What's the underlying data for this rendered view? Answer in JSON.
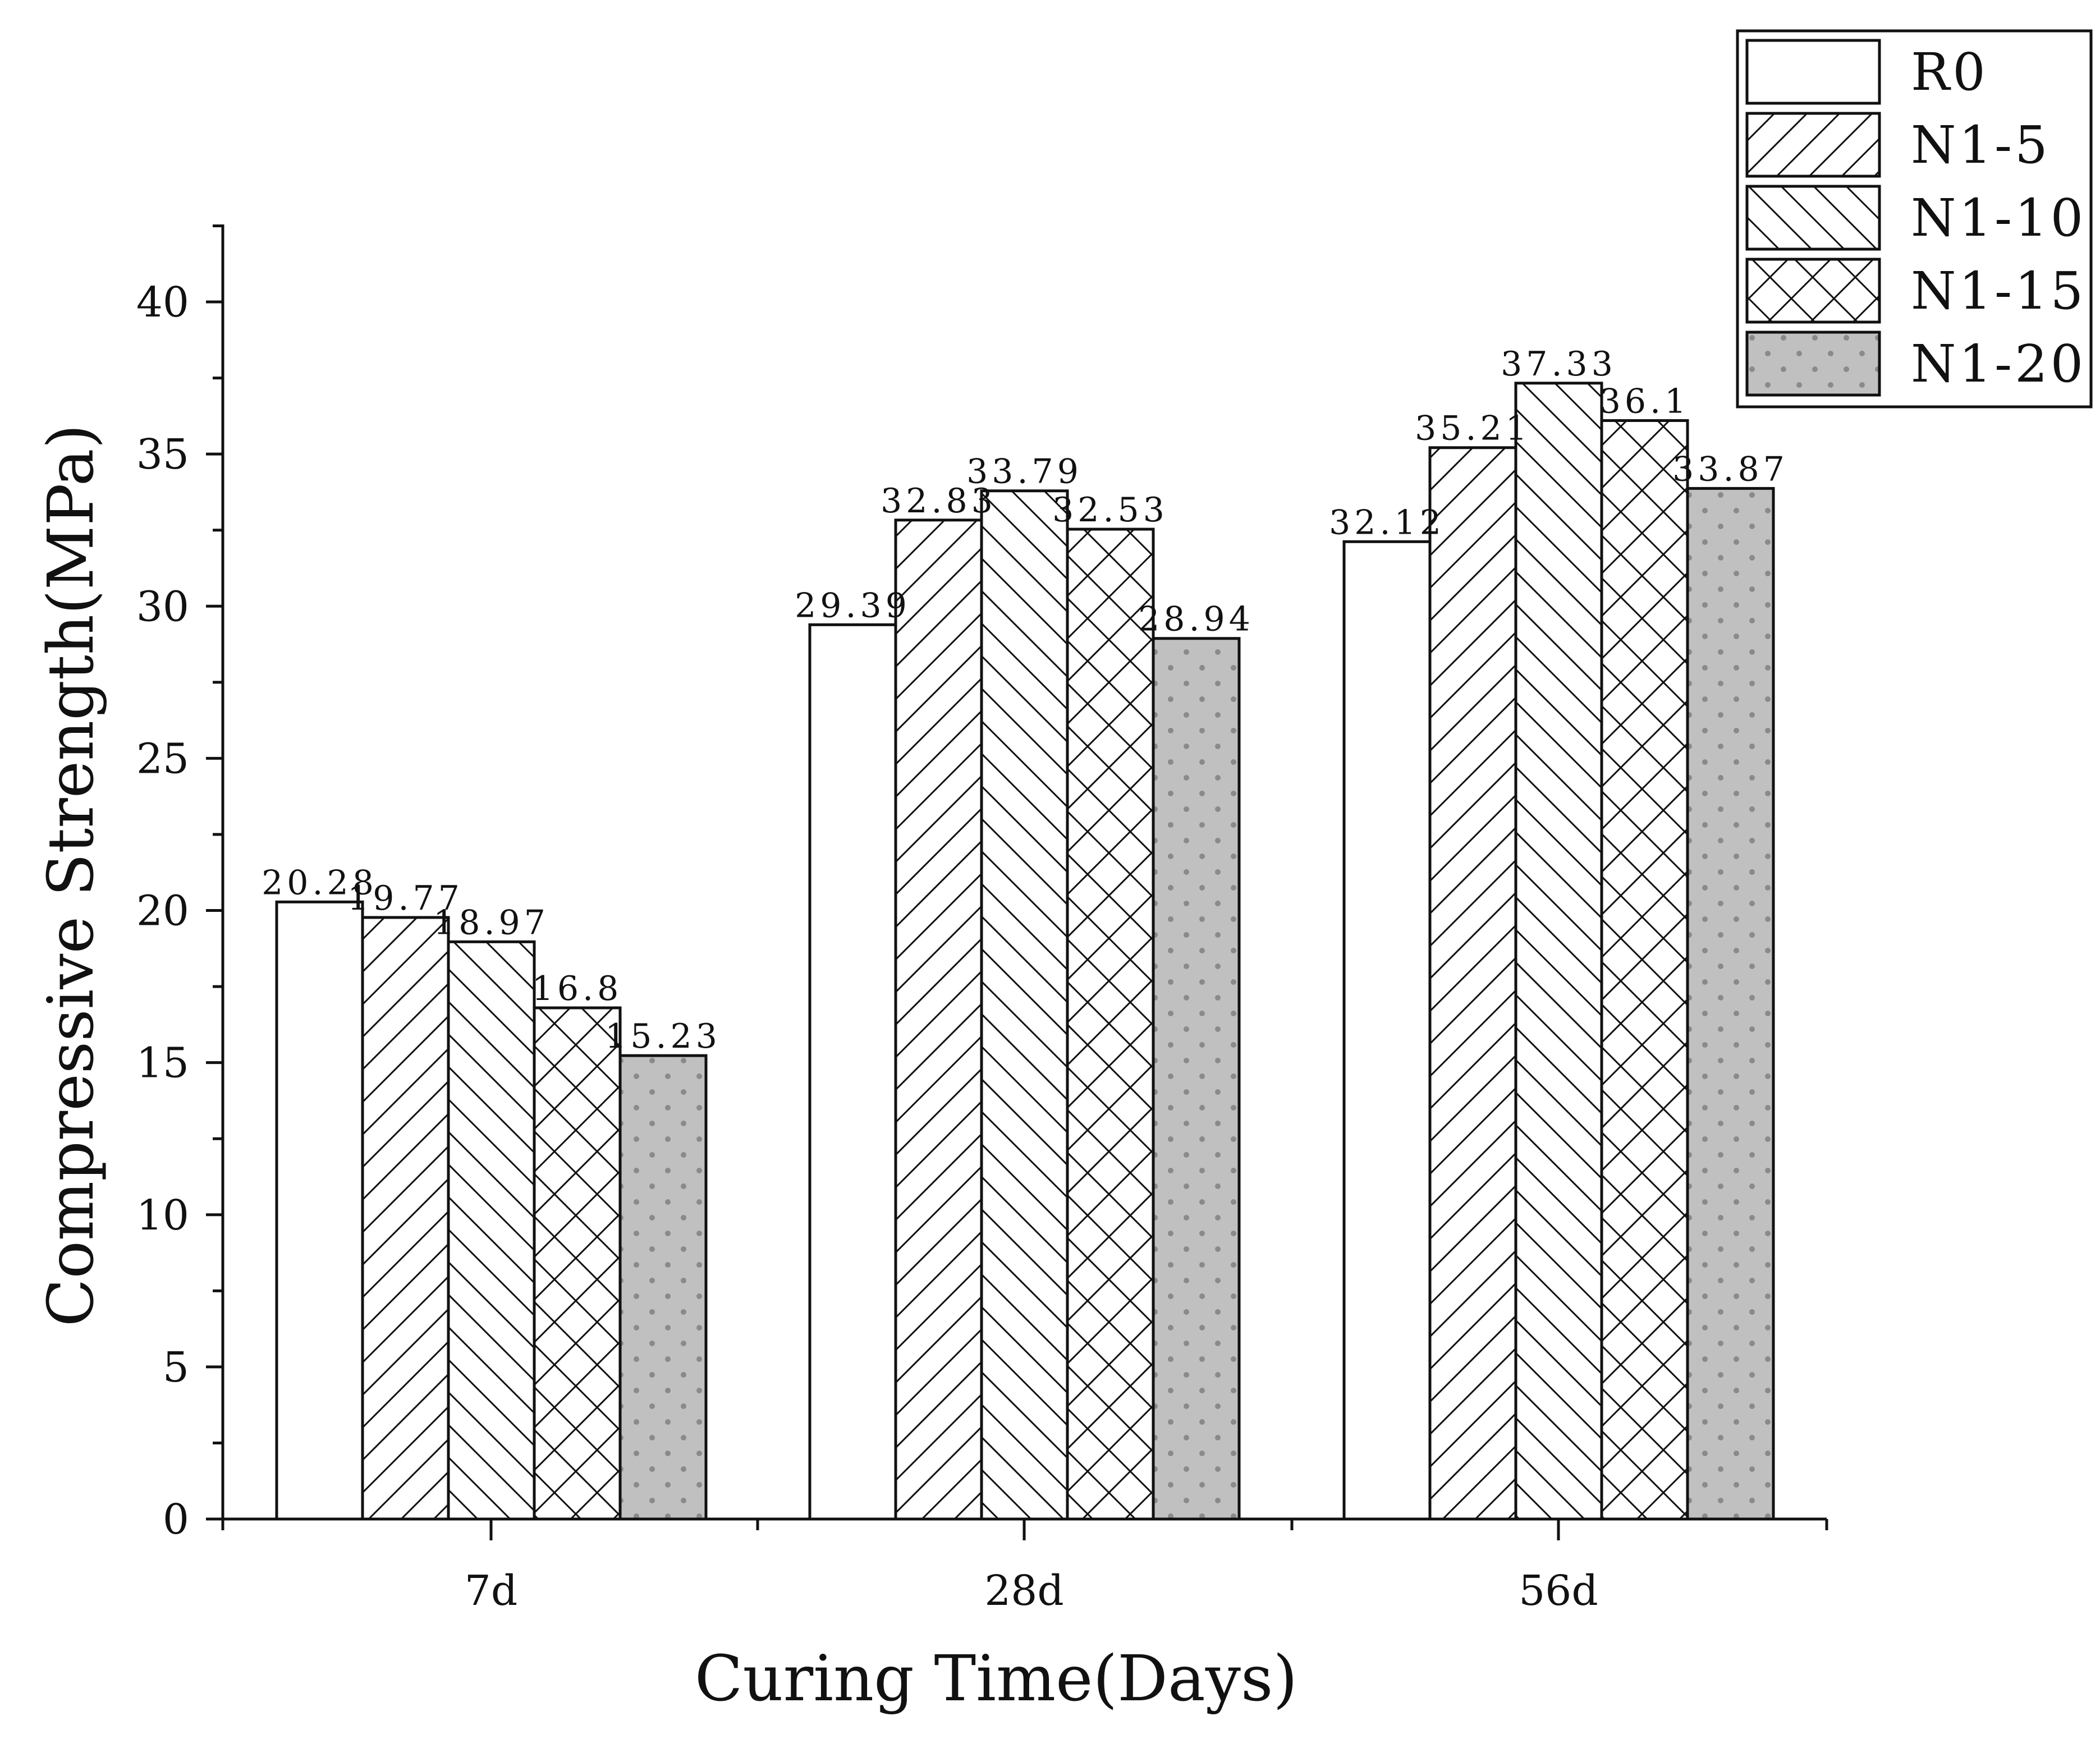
{
  "chart_data": {
    "type": "bar",
    "title": "",
    "xlabel": "Curing Time(Days)",
    "ylabel": "Compressive Strength(MPa)",
    "ylim": [
      0,
      42.5
    ],
    "yticks": [
      0,
      5,
      10,
      15,
      20,
      25,
      30,
      35,
      40
    ],
    "grid": false,
    "legend_position": "top-right",
    "categories": [
      "7d",
      "28d",
      "56d"
    ],
    "series": [
      {
        "name": "R0",
        "pattern": "none",
        "values": [
          20.28,
          29.39,
          32.12
        ],
        "labels": [
          "20.28",
          "29.39",
          "32.12"
        ]
      },
      {
        "name": "N1-5",
        "pattern": "forward-diagonal",
        "values": [
          19.77,
          32.83,
          35.21
        ],
        "labels": [
          "19.77",
          "32.83",
          "35.21"
        ]
      },
      {
        "name": "N1-10",
        "pattern": "backward-diagonal",
        "values": [
          18.97,
          33.79,
          37.33
        ],
        "labels": [
          "18.97",
          "33.79",
          "37.33"
        ]
      },
      {
        "name": "N1-15",
        "pattern": "crosshatch",
        "values": [
          16.8,
          32.53,
          36.1
        ],
        "labels": [
          "16.8",
          "32.53",
          "36.1"
        ]
      },
      {
        "name": "N1-20",
        "pattern": "dots-gray",
        "values": [
          15.23,
          28.94,
          33.87
        ],
        "labels": [
          "15.23",
          "28.94",
          "33.87"
        ]
      }
    ],
    "colors": {
      "axis": "#111111",
      "bar_outline": "#111111",
      "bar_fill": "#ffffff",
      "dot_fill": "#c0c0c0",
      "dot_color": "#8a8a8a",
      "hatch": "#111111"
    }
  }
}
